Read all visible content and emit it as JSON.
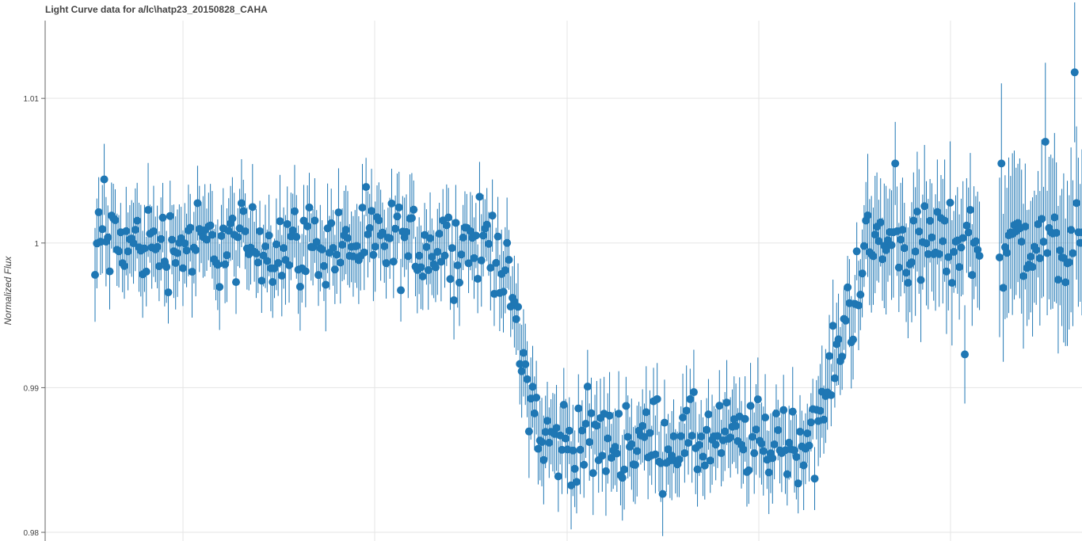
{
  "chart_data": {
    "type": "scatter",
    "title": "Light Curve data for a/lc\\hatp23_20150828_CAHA",
    "xlabel": "",
    "ylabel": "Normalized Flux",
    "ylim": [
      0.9794,
      1.0168
    ],
    "y_ticks": [
      "1.01",
      "1",
      "0.99",
      "0.98"
    ],
    "x_tick_labels": [],
    "grid": true,
    "legend": "none",
    "marker_color": "#1f77b4",
    "segments": [
      {
        "name": "pre-transit",
        "start_index": 0,
        "end_index": 220,
        "start_y": 0.9999,
        "end_y": 0.9999,
        "err": 0.0025
      },
      {
        "name": "ingress",
        "start_index": 220,
        "end_index": 244,
        "start_y": 0.9999,
        "end_y": 0.9863,
        "err": 0.0025
      },
      {
        "name": "transit",
        "start_index": 244,
        "end_index": 392,
        "start_y": 0.9863,
        "end_y": 0.9863,
        "err": 0.0025
      },
      {
        "name": "egress",
        "start_index": 392,
        "end_index": 422,
        "start_y": 0.9863,
        "end_y": 0.9999,
        "err": 0.0025
      },
      {
        "name": "post-transit",
        "start_index": 422,
        "end_index": 484,
        "start_y": 0.9999,
        "end_y": 0.9999,
        "err": 0.0035
      },
      {
        "name": "gap",
        "start_index": 484,
        "end_index": 494,
        "start_y": 0.9999,
        "end_y": 0.9999,
        "err": 0.004
      },
      {
        "name": "late",
        "start_index": 494,
        "end_index": 540,
        "start_y": 0.9999,
        "end_y": 0.9999,
        "err": 0.0045
      }
    ],
    "scatter_amplitude": 0.0018,
    "notable_points": [
      {
        "index": 0,
        "y": 0.9978
      },
      {
        "index": 5,
        "y": 1.0044
      },
      {
        "index": 437,
        "y": 1.0055
      },
      {
        "index": 475,
        "y": 0.9923
      },
      {
        "index": 495,
        "y": 1.0055
      },
      {
        "index": 519,
        "y": 1.007
      },
      {
        "index": 535,
        "y": 1.0118
      }
    ]
  }
}
